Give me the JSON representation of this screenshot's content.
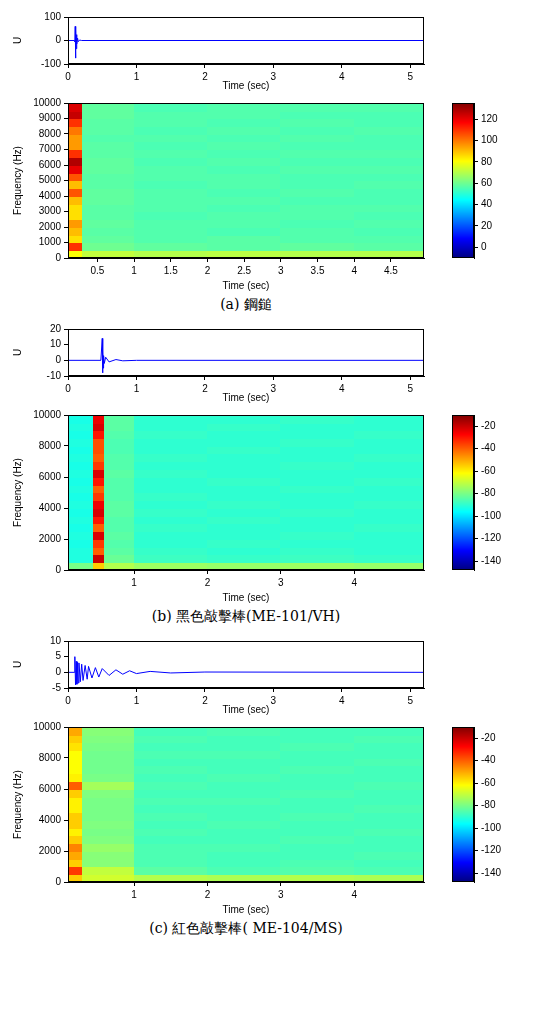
{
  "chart_data": [
    {
      "type": "line",
      "xlabel": "Time (sec)",
      "ylabel": "U",
      "color": "#0000ff",
      "grid": false,
      "xlim": [
        0,
        5.2
      ],
      "xticks": [
        0,
        1,
        2,
        3,
        4,
        5
      ],
      "ylim": [
        -100,
        100
      ],
      "yticks": [
        -100,
        0,
        100
      ],
      "x": [
        0,
        0.09,
        0.1,
        0.105,
        0.11,
        0.115,
        0.12,
        0.125,
        0.13,
        0.14,
        0.15,
        0.17,
        0.2,
        5.2
      ],
      "values": [
        0,
        0,
        -5,
        60,
        -75,
        45,
        -35,
        25,
        -15,
        10,
        -5,
        2,
        0,
        0
      ]
    },
    {
      "type": "heatmap",
      "caption": "(a) 鋼鎚",
      "xlabel": "Time (sec)",
      "ylabel": "Frequency (Hz)",
      "grid": false,
      "xlim": [
        0.1,
        4.95
      ],
      "xticks": [
        0.5,
        1,
        1.5,
        2,
        2.5,
        3,
        3.5,
        4,
        4.5
      ],
      "ylim": [
        0,
        10000
      ],
      "yticks": [
        0,
        1000,
        2000,
        3000,
        4000,
        5000,
        6000,
        7000,
        8000,
        9000,
        10000
      ],
      "x_edges": [
        0.1,
        0.3,
        1,
        2,
        3,
        4,
        4.95
      ],
      "y_edges": [
        0,
        500,
        1000,
        1500,
        2000,
        2500,
        3000,
        3500,
        4000,
        4500,
        5000,
        5500,
        6000,
        6500,
        7000,
        7500,
        8000,
        8500,
        9000,
        9500,
        10000
      ],
      "cells": [
        [
          80,
          72,
          70,
          71,
          70,
          70
        ],
        [
          110,
          60,
          58,
          57,
          58,
          57
        ],
        [
          85,
          58,
          56,
          57,
          56,
          56
        ],
        [
          90,
          57,
          56,
          55,
          56,
          55
        ],
        [
          95,
          58,
          56,
          56,
          55,
          56
        ],
        [
          85,
          57,
          55,
          56,
          56,
          55
        ],
        [
          85,
          57,
          56,
          55,
          56,
          56
        ],
        [
          90,
          58,
          56,
          56,
          55,
          55
        ],
        [
          105,
          58,
          56,
          55,
          56,
          55
        ],
        [
          90,
          57,
          55,
          56,
          55,
          56
        ],
        [
          105,
          57,
          56,
          56,
          55,
          55
        ],
        [
          120,
          58,
          56,
          55,
          56,
          56
        ],
        [
          128,
          58,
          55,
          56,
          55,
          55
        ],
        [
          110,
          57,
          56,
          55,
          56,
          56
        ],
        [
          95,
          57,
          55,
          56,
          55,
          55
        ],
        [
          95,
          56,
          56,
          55,
          56,
          55
        ],
        [
          100,
          57,
          55,
          56,
          55,
          56
        ],
        [
          110,
          57,
          56,
          55,
          56,
          55
        ],
        [
          125,
          58,
          56,
          56,
          55,
          55
        ],
        [
          122,
          58,
          55,
          56,
          56,
          56
        ]
      ],
      "colorbar": {
        "lim": [
          -10,
          135
        ],
        "ticks": [
          0,
          20,
          40,
          60,
          80,
          100,
          120
        ]
      }
    },
    {
      "type": "line",
      "xlabel": "Time (sec)",
      "ylabel": "U",
      "color": "#0000ff",
      "grid": false,
      "xlim": [
        0,
        5.2
      ],
      "xticks": [
        0,
        1,
        2,
        3,
        4,
        5
      ],
      "ylim": [
        -10,
        20
      ],
      "yticks": [
        -10,
        0,
        10,
        20
      ],
      "x": [
        0,
        0.48,
        0.5,
        0.505,
        0.51,
        0.515,
        0.52,
        0.53,
        0.55,
        0.6,
        0.7,
        0.8,
        1.0,
        5.2
      ],
      "values": [
        0,
        0,
        14,
        -8,
        6,
        -5,
        3,
        -2,
        2,
        -1,
        0.5,
        -0.3,
        0,
        0
      ]
    },
    {
      "type": "heatmap",
      "caption": "(b) 黑色敲擊棒(ME-101/VH)",
      "xlabel": "Time (sec)",
      "ylabel": "Frequency (Hz)",
      "grid": false,
      "xlim": [
        0.1,
        4.95
      ],
      "xticks": [
        1,
        2,
        3,
        4
      ],
      "ylim": [
        0,
        10000
      ],
      "yticks": [
        0,
        2000,
        4000,
        6000,
        8000,
        10000
      ],
      "x_edges": [
        0.1,
        0.45,
        0.6,
        1,
        2,
        3,
        4,
        4.95
      ],
      "y_edges": [
        0,
        500,
        1000,
        1500,
        2000,
        2500,
        3000,
        3500,
        4000,
        4500,
        5000,
        5500,
        6000,
        6500,
        7000,
        7500,
        8000,
        8500,
        9000,
        9500,
        10000
      ],
      "cells": [
        [
          -80,
          -55,
          -72,
          -75,
          -76,
          -75,
          -76
        ],
        [
          -92,
          -20,
          -82,
          -88,
          -89,
          -88,
          -89
        ],
        [
          -92,
          -40,
          -84,
          -89,
          -90,
          -89,
          -90
        ],
        [
          -93,
          -35,
          -85,
          -90,
          -89,
          -90,
          -90
        ],
        [
          -92,
          -22,
          -84,
          -90,
          -90,
          -89,
          -90
        ],
        [
          -93,
          -40,
          -85,
          -89,
          -90,
          -90,
          -89
        ],
        [
          -92,
          -30,
          -85,
          -90,
          -89,
          -90,
          -90
        ],
        [
          -93,
          -22,
          -84,
          -89,
          -90,
          -89,
          -90
        ],
        [
          -92,
          -25,
          -84,
          -90,
          -89,
          -90,
          -89
        ],
        [
          -93,
          -35,
          -85,
          -89,
          -90,
          -90,
          -90
        ],
        [
          -92,
          -40,
          -85,
          -90,
          -90,
          -89,
          -90
        ],
        [
          -93,
          -30,
          -85,
          -90,
          -89,
          -90,
          -89
        ],
        [
          -92,
          -22,
          -84,
          -89,
          -90,
          -90,
          -90
        ],
        [
          -93,
          -35,
          -85,
          -90,
          -90,
          -89,
          -90
        ],
        [
          -92,
          -40,
          -85,
          -89,
          -90,
          -90,
          -89
        ],
        [
          -93,
          -38,
          -86,
          -90,
          -89,
          -90,
          -90
        ],
        [
          -92,
          -38,
          -86,
          -90,
          -90,
          -89,
          -90
        ],
        [
          -93,
          -30,
          -85,
          -89,
          -90,
          -90,
          -89
        ],
        [
          -92,
          -22,
          -84,
          -90,
          -89,
          -90,
          -90
        ],
        [
          -93,
          -25,
          -84,
          -90,
          -90,
          -89,
          -90
        ]
      ],
      "colorbar": {
        "lim": [
          -148,
          -10
        ],
        "ticks": [
          -140,
          -120,
          -100,
          -80,
          -60,
          -40,
          -20
        ]
      }
    },
    {
      "type": "line",
      "xlabel": "Time (sec)",
      "ylabel": "U",
      "color": "#0000ff",
      "grid": false,
      "xlim": [
        0,
        5.2
      ],
      "xticks": [
        0,
        1,
        2,
        3,
        4,
        5
      ],
      "ylim": [
        -5,
        10
      ],
      "yticks": [
        -5,
        0,
        5,
        10
      ],
      "x": [
        0,
        0.09,
        0.1,
        0.11,
        0.12,
        0.13,
        0.14,
        0.15,
        0.16,
        0.18,
        0.2,
        0.22,
        0.25,
        0.28,
        0.3,
        0.35,
        0.4,
        0.45,
        0.5,
        0.6,
        0.7,
        0.8,
        0.9,
        1.0,
        1.2,
        1.5,
        2.0,
        5.2
      ],
      "values": [
        0,
        0,
        5,
        -4,
        3.5,
        -3.8,
        3.2,
        -3.4,
        3,
        -3,
        2.6,
        -2.6,
        2.2,
        -2.2,
        1.9,
        -1.8,
        1.5,
        -1.5,
        1.2,
        -1,
        0.8,
        -0.6,
        0.5,
        -0.4,
        0.3,
        -0.2,
        0.1,
        0
      ]
    },
    {
      "type": "heatmap",
      "caption": "(c) 紅色敲擊棒( ME-104/MS)",
      "xlabel": "Time (sec)",
      "ylabel": "Frequency (Hz)",
      "grid": false,
      "xlim": [
        0.1,
        4.95
      ],
      "xticks": [
        1,
        2,
        3,
        4
      ],
      "ylim": [
        0,
        10000
      ],
      "yticks": [
        0,
        2000,
        4000,
        6000,
        8000,
        10000
      ],
      "x_edges": [
        0.1,
        0.3,
        1,
        2,
        3,
        4,
        4.95
      ],
      "y_edges": [
        0,
        500,
        1000,
        1500,
        2000,
        2500,
        3000,
        3500,
        4000,
        4500,
        5000,
        5500,
        6000,
        6500,
        7000,
        7500,
        8000,
        8500,
        9000,
        9500,
        10000
      ],
      "cells": [
        [
          -55,
          -68,
          -72,
          -73,
          -72,
          -73
        ],
        [
          -35,
          -70,
          -84,
          -86,
          -85,
          -86
        ],
        [
          -55,
          -78,
          -86,
          -87,
          -86,
          -87
        ],
        [
          -50,
          -78,
          -86,
          -87,
          -87,
          -86
        ],
        [
          -45,
          -76,
          -86,
          -86,
          -87,
          -87
        ],
        [
          -55,
          -79,
          -87,
          -87,
          -86,
          -87
        ],
        [
          -60,
          -80,
          -86,
          -87,
          -87,
          -86
        ],
        [
          -55,
          -79,
          -87,
          -86,
          -87,
          -87
        ],
        [
          -55,
          -80,
          -86,
          -87,
          -86,
          -87
        ],
        [
          -60,
          -80,
          -87,
          -87,
          -87,
          -86
        ],
        [
          -60,
          -80,
          -86,
          -86,
          -87,
          -87
        ],
        [
          -55,
          -79,
          -87,
          -87,
          -86,
          -87
        ],
        [
          -40,
          -74,
          -86,
          -87,
          -87,
          -86
        ],
        [
          -60,
          -80,
          -87,
          -86,
          -87,
          -87
        ],
        [
          -62,
          -81,
          -86,
          -87,
          -86,
          -87
        ],
        [
          -62,
          -81,
          -87,
          -87,
          -87,
          -86
        ],
        [
          -62,
          -81,
          -86,
          -86,
          -87,
          -87
        ],
        [
          -58,
          -80,
          -87,
          -87,
          -86,
          -87
        ],
        [
          -55,
          -79,
          -86,
          -87,
          -87,
          -86
        ],
        [
          -50,
          -78,
          -87,
          -86,
          -87,
          -87
        ]
      ],
      "colorbar": {
        "lim": [
          -148,
          -10
        ],
        "ticks": [
          -140,
          -120,
          -100,
          -80,
          -60,
          -40,
          -20
        ]
      }
    }
  ]
}
